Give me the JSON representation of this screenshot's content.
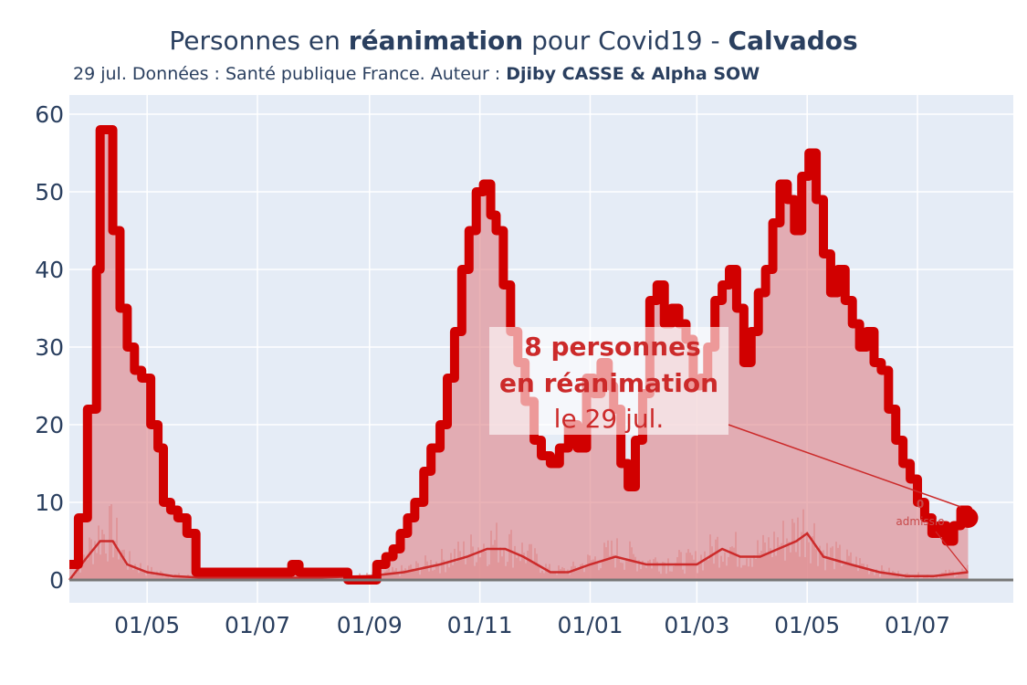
{
  "title": {
    "prefix": "Personnes en ",
    "bold1": "réanimation",
    "middle": " pour Covid19 - ",
    "bold2": "Calvados"
  },
  "subtitle": {
    "prefix": "29 jul. Données : Santé publique France. Auteur : ",
    "bold": "Djiby CASSE & Alpha SOW"
  },
  "annotation": {
    "line1": "8 personnes",
    "line2": "en réanimation",
    "line3": "le 29 jul."
  },
  "small_annotation": {
    "top": "0",
    "bottom": "admissio"
  },
  "chart_data": {
    "type": "area",
    "x_tick_labels": [
      "01/05",
      "01/07",
      "01/09",
      "01/11",
      "01/01",
      "01/03",
      "01/05",
      "01/07"
    ],
    "y_tick_labels": [
      "0",
      "10",
      "20",
      "30",
      "40",
      "50",
      "60"
    ],
    "ylim": [
      0,
      62
    ],
    "grid": true,
    "colors": {
      "reanimation_line": "#d10000",
      "reanimation_fill": "#e08a8f",
      "admissions_line": "#cc2b2b",
      "admissions_bars": "#d96b6b",
      "plot_background": "#e5ecf6"
    },
    "series": [
      {
        "x": [
          "2020-03-19",
          "2020-03-24",
          "2020-03-29",
          "2020-04-03",
          "2020-04-05",
          "2020-04-08",
          "2020-04-12",
          "2020-04-16",
          "2020-04-20",
          "2020-04-24",
          "2020-04-28",
          "2020-05-03",
          "2020-05-07",
          "2020-05-10",
          "2020-05-14",
          "2020-05-18",
          "2020-05-23",
          "2020-05-28",
          "2020-06-01",
          "2020-06-15",
          "2020-07-01",
          "2020-07-15",
          "2020-07-20",
          "2020-07-24",
          "2020-08-01",
          "2020-08-10",
          "2020-08-15",
          "2020-08-20",
          "2020-08-25",
          "2020-09-01",
          "2020-09-05",
          "2020-09-10",
          "2020-09-14",
          "2020-09-18",
          "2020-09-22",
          "2020-09-26",
          "2020-10-01",
          "2020-10-05",
          "2020-10-10",
          "2020-10-14",
          "2020-10-18",
          "2020-10-22",
          "2020-10-26",
          "2020-10-30",
          "2020-11-03",
          "2020-11-07",
          "2020-11-10",
          "2020-11-14",
          "2020-11-18",
          "2020-11-22",
          "2020-11-26",
          "2020-12-01",
          "2020-12-05",
          "2020-12-10",
          "2020-12-15",
          "2020-12-20",
          "2020-12-25",
          "2020-12-30",
          "2021-01-03",
          "2021-01-07",
          "2021-01-11",
          "2021-01-14",
          "2021-01-18",
          "2021-01-22",
          "2021-01-26",
          "2021-01-30",
          "2021-02-03",
          "2021-02-07",
          "2021-02-11",
          "2021-02-15",
          "2021-02-19",
          "2021-02-23",
          "2021-02-27",
          "2021-03-03",
          "2021-03-07",
          "2021-03-11",
          "2021-03-15",
          "2021-03-19",
          "2021-03-23",
          "2021-03-27",
          "2021-03-31",
          "2021-04-04",
          "2021-04-08",
          "2021-04-12",
          "2021-04-16",
          "2021-04-20",
          "2021-04-24",
          "2021-04-28",
          "2021-05-02",
          "2021-05-06",
          "2021-05-10",
          "2021-05-14",
          "2021-05-18",
          "2021-05-22",
          "2021-05-26",
          "2021-05-30",
          "2021-06-03",
          "2021-06-07",
          "2021-06-11",
          "2021-06-15",
          "2021-06-19",
          "2021-06-23",
          "2021-06-27",
          "2021-07-01",
          "2021-07-05",
          "2021-07-09",
          "2021-07-13",
          "2021-07-17",
          "2021-07-21",
          "2021-07-25",
          "2021-07-29"
        ],
        "y": [
          2,
          8,
          22,
          40,
          58,
          58,
          45,
          35,
          30,
          27,
          26,
          20,
          17,
          10,
          9,
          8,
          6,
          1,
          1,
          1,
          1,
          1,
          2,
          1,
          1,
          1,
          1,
          0,
          0,
          0,
          2,
          3,
          4,
          6,
          8,
          10,
          14,
          17,
          20,
          26,
          32,
          40,
          45,
          50,
          51,
          47,
          45,
          38,
          32,
          28,
          23,
          18,
          16,
          15,
          17,
          20,
          17,
          26,
          24,
          28,
          25,
          22,
          15,
          12,
          18,
          24,
          36,
          38,
          33,
          35,
          33,
          31,
          25,
          26,
          30,
          36,
          38,
          40,
          35,
          28,
          32,
          37,
          40,
          46,
          51,
          49,
          45,
          52,
          55,
          49,
          42,
          37,
          40,
          36,
          33,
          30,
          32,
          28,
          27,
          22,
          18,
          15,
          13,
          10,
          8,
          6,
          7,
          5,
          7,
          9,
          8
        ]
      },
      {
        "x": [
          "2020-03-19",
          "2020-03-29",
          "2020-04-05",
          "2020-04-12",
          "2020-04-20",
          "2020-05-01",
          "2020-05-15",
          "2020-06-01",
          "2020-07-01",
          "2020-08-01",
          "2020-09-01",
          "2020-09-20",
          "2020-10-10",
          "2020-10-25",
          "2020-11-05",
          "2020-11-15",
          "2020-11-25",
          "2020-12-10",
          "2020-12-20",
          "2021-01-01",
          "2021-01-15",
          "2021-02-01",
          "2021-02-15",
          "2021-03-01",
          "2021-03-15",
          "2021-03-25",
          "2021-04-05",
          "2021-04-15",
          "2021-04-25",
          "2021-05-01",
          "2021-05-10",
          "2021-05-25",
          "2021-06-10",
          "2021-06-25",
          "2021-07-10",
          "2021-07-29"
        ],
        "y": [
          0,
          3,
          5,
          5,
          2,
          1,
          0.5,
          0.3,
          0.3,
          0.3,
          0.5,
          1,
          2,
          3,
          4,
          4,
          3,
          1,
          1,
          2,
          3,
          2,
          2,
          2,
          4,
          3,
          3,
          4,
          5,
          6,
          3,
          2,
          1,
          0.5,
          0.5,
          1
        ]
      }
    ]
  }
}
